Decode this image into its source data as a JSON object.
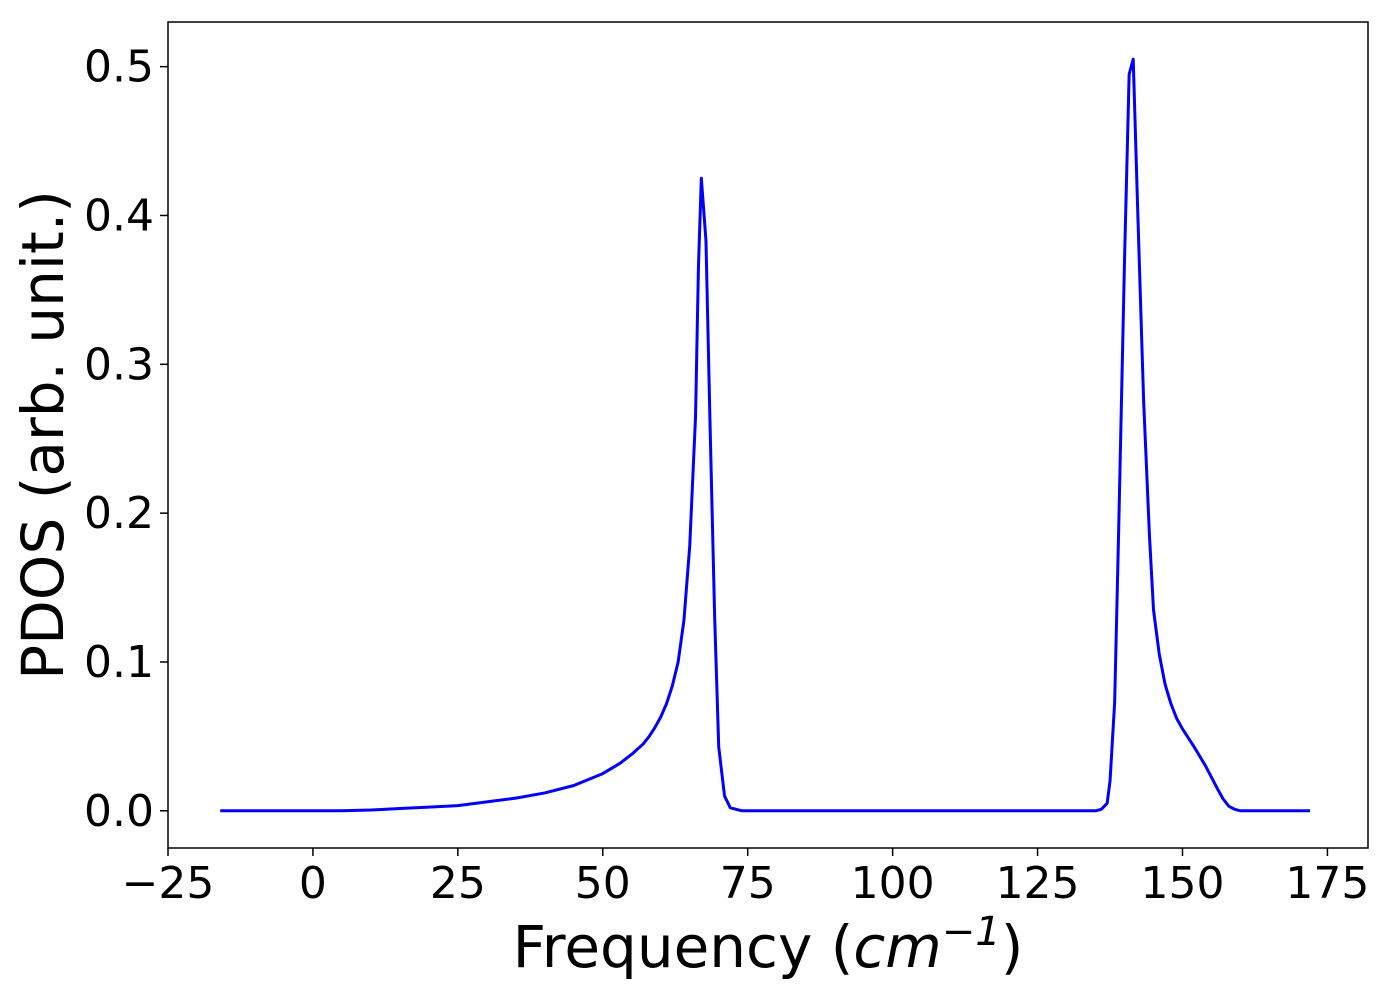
{
  "chart_data": {
    "type": "line",
    "title": "",
    "xlabel": "Frequency (cm⁻¹)",
    "xlabel_parts": {
      "prefix": "Frequency (",
      "unit_base": "cm",
      "unit_exp": "−1",
      "suffix": ")"
    },
    "ylabel": "PDOS (arb. unit.)",
    "xlim": [
      -25,
      182
    ],
    "ylim": [
      -0.025,
      0.53
    ],
    "x_ticks": [
      -25,
      0,
      25,
      50,
      75,
      100,
      125,
      150,
      175
    ],
    "x_tick_labels": [
      "−25",
      "0",
      "25",
      "50",
      "75",
      "100",
      "125",
      "150",
      "175"
    ],
    "y_ticks": [
      0.0,
      0.1,
      0.2,
      0.3,
      0.4,
      0.5
    ],
    "y_tick_labels": [
      "0.0",
      "0.1",
      "0.2",
      "0.3",
      "0.4",
      "0.5"
    ],
    "grid": false,
    "legend": "none",
    "line_color": "#0000ff",
    "series": [
      {
        "points": [
          [
            -16,
            0.0
          ],
          [
            0,
            0.0
          ],
          [
            5,
            0.0
          ],
          [
            10,
            0.0005
          ],
          [
            15,
            0.0015
          ],
          [
            20,
            0.0025
          ],
          [
            25,
            0.0035
          ],
          [
            30,
            0.006
          ],
          [
            35,
            0.0085
          ],
          [
            40,
            0.012
          ],
          [
            45,
            0.017
          ],
          [
            50,
            0.025
          ],
          [
            53,
            0.032
          ],
          [
            55,
            0.038
          ],
          [
            57,
            0.045
          ],
          [
            58,
            0.05
          ],
          [
            59,
            0.056
          ],
          [
            60,
            0.063
          ],
          [
            61,
            0.072
          ],
          [
            62,
            0.084
          ],
          [
            63,
            0.1
          ],
          [
            64,
            0.128
          ],
          [
            65,
            0.178
          ],
          [
            66,
            0.265
          ],
          [
            66.5,
            0.365
          ],
          [
            67,
            0.425
          ],
          [
            67.8,
            0.383
          ],
          [
            68.5,
            0.26
          ],
          [
            69.3,
            0.13
          ],
          [
            70,
            0.043
          ],
          [
            71,
            0.01
          ],
          [
            72,
            0.002
          ],
          [
            74,
            0.0
          ],
          [
            100,
            0.0
          ],
          [
            125,
            0.0
          ],
          [
            135,
            0.0
          ],
          [
            136,
            0.001
          ],
          [
            137,
            0.005
          ],
          [
            137.5,
            0.02
          ],
          [
            138.3,
            0.073
          ],
          [
            139,
            0.19
          ],
          [
            140,
            0.37
          ],
          [
            140.8,
            0.495
          ],
          [
            141.5,
            0.505
          ],
          [
            142.3,
            0.4
          ],
          [
            143.3,
            0.275
          ],
          [
            144.3,
            0.185
          ],
          [
            145,
            0.135
          ],
          [
            146,
            0.105
          ],
          [
            147,
            0.085
          ],
          [
            148,
            0.072
          ],
          [
            149,
            0.062
          ],
          [
            150,
            0.055
          ],
          [
            152,
            0.043
          ],
          [
            154,
            0.03
          ],
          [
            156,
            0.015
          ],
          [
            157,
            0.008
          ],
          [
            158,
            0.003
          ],
          [
            159,
            0.001
          ],
          [
            160,
            0.0
          ],
          [
            165,
            0.0
          ],
          [
            172,
            0.0
          ]
        ]
      }
    ]
  }
}
